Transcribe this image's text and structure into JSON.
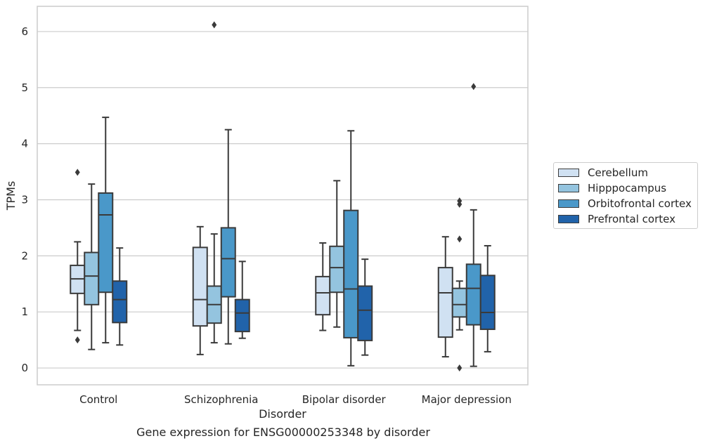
{
  "caption": "Gene expression for ENSG00000253348 by disorder",
  "chart_data": {
    "type": "box",
    "xlabel": "Disorder",
    "ylabel": "TPMs",
    "ylim": [
      -0.3,
      6.45
    ],
    "yticks": [
      0,
      1,
      2,
      3,
      4,
      5,
      6
    ],
    "grid": true,
    "legend_position": "right",
    "categories": [
      "Control",
      "Schizophrenia",
      "Bipolar disorder",
      "Major depression"
    ],
    "series": [
      {
        "name": "Cerebellum",
        "color": "#d0e1f2",
        "boxes": [
          {
            "whisker_low": 0.67,
            "q1": 1.33,
            "median": 1.59,
            "q3": 1.83,
            "whisker_high": 2.25,
            "outliers": [
              3.49,
              0.5
            ]
          },
          {
            "whisker_low": 0.24,
            "q1": 0.75,
            "median": 1.22,
            "q3": 2.15,
            "whisker_high": 2.52,
            "outliers": []
          },
          {
            "whisker_low": 0.67,
            "q1": 0.95,
            "median": 1.34,
            "q3": 1.63,
            "whisker_high": 2.23,
            "outliers": []
          },
          {
            "whisker_low": 0.2,
            "q1": 0.55,
            "median": 1.34,
            "q3": 1.79,
            "whisker_high": 2.34,
            "outliers": []
          }
        ]
      },
      {
        "name": "Hipppocampus",
        "color": "#94c4df",
        "boxes": [
          {
            "whisker_low": 0.33,
            "q1": 1.13,
            "median": 1.64,
            "q3": 2.06,
            "whisker_high": 3.28,
            "outliers": []
          },
          {
            "whisker_low": 0.45,
            "q1": 0.8,
            "median": 1.13,
            "q3": 1.46,
            "whisker_high": 2.39,
            "outliers": [
              6.12
            ]
          },
          {
            "whisker_low": 0.73,
            "q1": 1.35,
            "median": 1.79,
            "q3": 2.17,
            "whisker_high": 3.34,
            "outliers": []
          },
          {
            "whisker_low": 0.68,
            "q1": 0.91,
            "median": 1.13,
            "q3": 1.42,
            "whisker_high": 1.55,
            "outliers": [
              2.98,
              2.92,
              2.3,
              0.0
            ]
          }
        ]
      },
      {
        "name": "Orbitofrontal cortex",
        "color": "#4a98c9",
        "boxes": [
          {
            "whisker_low": 0.45,
            "q1": 1.35,
            "median": 2.73,
            "q3": 3.12,
            "whisker_high": 4.47,
            "outliers": []
          },
          {
            "whisker_low": 0.43,
            "q1": 1.27,
            "median": 1.95,
            "q3": 2.5,
            "whisker_high": 4.25,
            "outliers": []
          },
          {
            "whisker_low": 0.04,
            "q1": 0.54,
            "median": 1.41,
            "q3": 2.81,
            "whisker_high": 4.23,
            "outliers": []
          },
          {
            "whisker_low": 0.03,
            "q1": 0.77,
            "median": 1.42,
            "q3": 1.85,
            "whisker_high": 2.82,
            "outliers": [
              5.02
            ]
          }
        ]
      },
      {
        "name": "Prefrontal cortex",
        "color": "#2163aa",
        "boxes": [
          {
            "whisker_low": 0.41,
            "q1": 0.81,
            "median": 1.22,
            "q3": 1.55,
            "whisker_high": 2.14,
            "outliers": []
          },
          {
            "whisker_low": 0.53,
            "q1": 0.65,
            "median": 0.98,
            "q3": 1.22,
            "whisker_high": 1.9,
            "outliers": []
          },
          {
            "whisker_low": 0.23,
            "q1": 0.49,
            "median": 1.03,
            "q3": 1.46,
            "whisker_high": 1.94,
            "outliers": []
          },
          {
            "whisker_low": 0.29,
            "q1": 0.69,
            "median": 0.99,
            "q3": 1.65,
            "whisker_high": 2.18,
            "outliers": []
          }
        ]
      }
    ]
  }
}
